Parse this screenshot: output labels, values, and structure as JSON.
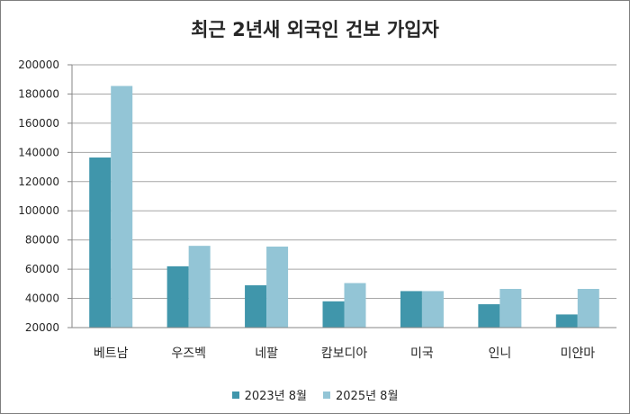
{
  "chart_data": {
    "type": "bar",
    "title": "최근 2년새 외국인 건보 가입자",
    "categories": [
      "베트남",
      "우즈벡",
      "네팔",
      "캄보디아",
      "미국",
      "인니",
      "미얀마"
    ],
    "series": [
      {
        "name": "2023년 8월",
        "color": "#4096ab",
        "values": [
          136500,
          62000,
          49000,
          38000,
          45000,
          36000,
          29000
        ]
      },
      {
        "name": "2025년 8월",
        "color": "#93c5d6",
        "values": [
          185500,
          76000,
          75500,
          50500,
          45000,
          46500,
          46500
        ]
      }
    ],
    "ylim": [
      20000,
      200000
    ],
    "yticks": [
      20000,
      40000,
      60000,
      80000,
      100000,
      120000,
      140000,
      160000,
      180000,
      200000
    ],
    "grid": true,
    "legend_position": "bottom"
  }
}
